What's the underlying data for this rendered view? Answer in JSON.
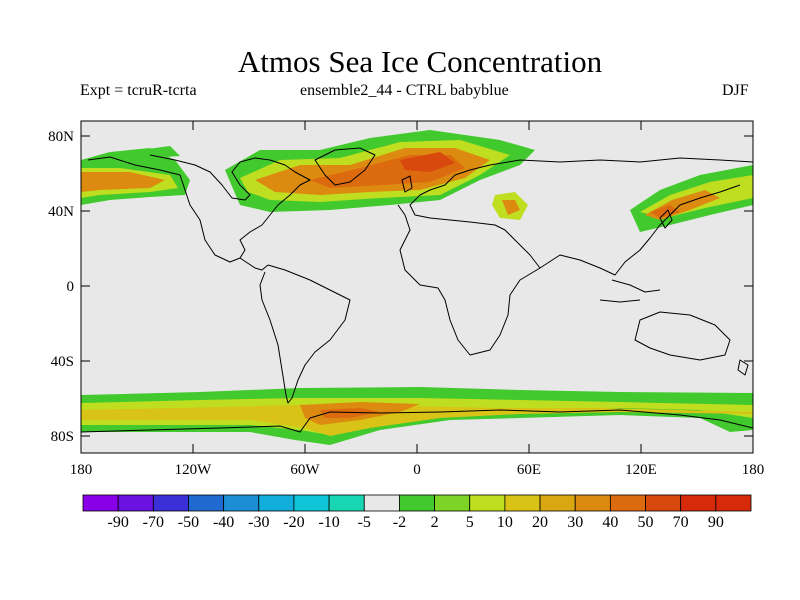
{
  "title": "Atmos Sea Ice Concentration",
  "left_label": "Expt = tcruR-tcrta",
  "center_label": "ensemble2_44 - CTRL babyblue",
  "right_label": "DJF",
  "y_ticks": [
    "80N",
    "40N",
    "0",
    "40S",
    "80S"
  ],
  "x_ticks": [
    "180",
    "120W",
    "60W",
    "0",
    "60E",
    "120E",
    "180"
  ],
  "colorbar": {
    "labels": [
      "-90",
      "-70",
      "-50",
      "-40",
      "-30",
      "-20",
      "-10",
      "-5",
      "-2",
      "2",
      "5",
      "10",
      "20",
      "30",
      "40",
      "50",
      "70",
      "90"
    ],
    "colors": [
      "#8a00e6",
      "#6a12e0",
      "#3b2fd8",
      "#1f6ad0",
      "#1b8ed6",
      "#11aedb",
      "#0ec6d8",
      "#19d6b3",
      "#e8e8e8",
      "#42c92e",
      "#7ed426",
      "#bede1f",
      "#d8c316",
      "#d9a712",
      "#dc8a10",
      "#dc6a0e",
      "#d9480c",
      "#d72a0a"
    ]
  },
  "colors": {
    "land_ocean": "#e8e8e8",
    "coast": "#000000"
  }
}
